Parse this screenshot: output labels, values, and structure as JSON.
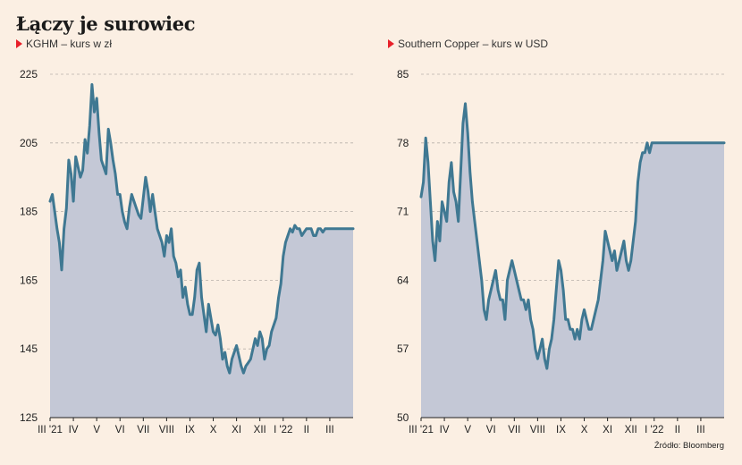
{
  "title": "Łączy je surowiec",
  "source": "Źródło: Bloomberg",
  "colors": {
    "line": "#3f7892",
    "area": "#c4c8d6",
    "grid": "#b8b1aa",
    "marker": "#e8202a",
    "background": "#fbefe3"
  },
  "months": [
    "III '21",
    "IV",
    "V",
    "VI",
    "VII",
    "VIII",
    "IX",
    "X",
    "XI",
    "XII",
    "I '22",
    "II",
    "III"
  ],
  "chart_data": [
    {
      "type": "area",
      "subtitle": "KGHM – kurs w zł",
      "ylim": [
        125,
        225
      ],
      "yticks": [
        125,
        145,
        165,
        185,
        205,
        225
      ],
      "x": [
        0,
        0.1,
        0.2,
        0.3,
        0.4,
        0.5,
        0.6,
        0.7,
        0.8,
        0.9,
        1.0,
        1.1,
        1.2,
        1.3,
        1.4,
        1.5,
        1.6,
        1.7,
        1.8,
        1.9,
        2.0,
        2.1,
        2.2,
        2.3,
        2.4,
        2.5,
        2.6,
        2.7,
        2.8,
        2.9,
        3.0,
        3.1,
        3.2,
        3.3,
        3.4,
        3.5,
        3.6,
        3.7,
        3.8,
        3.9,
        4.0,
        4.1,
        4.2,
        4.3,
        4.4,
        4.5,
        4.6,
        4.7,
        4.8,
        4.9,
        5.0,
        5.1,
        5.2,
        5.3,
        5.4,
        5.5,
        5.6,
        5.7,
        5.8,
        5.9,
        6.0,
        6.1,
        6.2,
        6.3,
        6.4,
        6.5,
        6.6,
        6.7,
        6.8,
        6.9,
        7.0,
        7.1,
        7.2,
        7.3,
        7.4,
        7.5,
        7.6,
        7.7,
        7.8,
        7.9,
        8.0,
        8.1,
        8.2,
        8.3,
        8.4,
        8.5,
        8.6,
        8.7,
        8.8,
        8.9,
        9.0,
        9.1,
        9.2,
        9.3,
        9.4,
        9.5,
        9.6,
        9.7,
        9.8,
        9.9,
        10.0,
        10.1,
        10.2,
        10.3,
        10.4,
        10.5,
        10.6,
        10.7,
        10.8,
        10.9,
        11.0,
        11.1,
        11.2,
        11.3,
        11.4,
        11.5,
        11.6,
        11.7,
        11.8,
        11.9,
        12.0,
        12.1,
        12.2,
        12.3,
        12.4,
        12.5,
        12.6,
        12.7,
        12.8,
        12.9,
        13.0
      ],
      "values": [
        188,
        190,
        185,
        180,
        176,
        168,
        180,
        186,
        200,
        196,
        188,
        201,
        198,
        195,
        197,
        206,
        202,
        210,
        222,
        214,
        218,
        208,
        200,
        198,
        196,
        209,
        205,
        200,
        196,
        190,
        190,
        185,
        182,
        180,
        186,
        190,
        188,
        186,
        184,
        183,
        189,
        195,
        191,
        185,
        190,
        185,
        180,
        178,
        176,
        172,
        178,
        176,
        180,
        172,
        170,
        166,
        168,
        160,
        163,
        158,
        155,
        155,
        160,
        168,
        170,
        160,
        155,
        150,
        158,
        154,
        150,
        149,
        152,
        148,
        142,
        144,
        140,
        138,
        142,
        144,
        146,
        143,
        140,
        138,
        140,
        141,
        142,
        145,
        148,
        146,
        150,
        148,
        142,
        145,
        146,
        150,
        152,
        154,
        160,
        164,
        172,
        176,
        178,
        180,
        179,
        181,
        180,
        180,
        178,
        179,
        180,
        180,
        180,
        178,
        178,
        180,
        180,
        179,
        180,
        180,
        180,
        180,
        180,
        180,
        180,
        180,
        180,
        180,
        180,
        180,
        180
      ]
    },
    {
      "type": "area",
      "subtitle": "Southern Copper – kurs w USD",
      "ylim": [
        50,
        85
      ],
      "yticks": [
        50,
        57,
        64,
        71,
        78,
        85
      ],
      "x": [
        0,
        0.1,
        0.2,
        0.3,
        0.4,
        0.5,
        0.6,
        0.7,
        0.8,
        0.9,
        1.0,
        1.1,
        1.2,
        1.3,
        1.4,
        1.5,
        1.6,
        1.7,
        1.8,
        1.9,
        2.0,
        2.1,
        2.2,
        2.3,
        2.4,
        2.5,
        2.6,
        2.7,
        2.8,
        2.9,
        3.0,
        3.1,
        3.2,
        3.3,
        3.4,
        3.5,
        3.6,
        3.7,
        3.8,
        3.9,
        4.0,
        4.1,
        4.2,
        4.3,
        4.4,
        4.5,
        4.6,
        4.7,
        4.8,
        4.9,
        5.0,
        5.1,
        5.2,
        5.3,
        5.4,
        5.5,
        5.6,
        5.7,
        5.8,
        5.9,
        6.0,
        6.1,
        6.2,
        6.3,
        6.4,
        6.5,
        6.6,
        6.7,
        6.8,
        6.9,
        7.0,
        7.1,
        7.2,
        7.3,
        7.4,
        7.5,
        7.6,
        7.7,
        7.8,
        7.9,
        8.0,
        8.1,
        8.2,
        8.3,
        8.4,
        8.5,
        8.6,
        8.7,
        8.8,
        8.9,
        9.0,
        9.1,
        9.2,
        9.3,
        9.4,
        9.5,
        9.6,
        9.7,
        9.8,
        9.9,
        10.0,
        10.1,
        10.2,
        10.3,
        10.4,
        10.5,
        10.6,
        10.7,
        10.8,
        10.9,
        11.0,
        11.1,
        11.2,
        11.3,
        11.4,
        11.5,
        11.6,
        11.7,
        11.8,
        11.9,
        12.0,
        12.1,
        12.2,
        12.3,
        12.4,
        12.5,
        12.6,
        12.7,
        12.8,
        12.9,
        13.0
      ],
      "values": [
        72.5,
        74,
        78.5,
        76,
        72,
        68,
        66,
        70,
        68,
        72,
        71,
        70,
        74,
        76,
        73,
        72,
        70,
        75,
        80,
        82,
        79,
        75,
        72,
        70,
        68,
        66,
        64,
        61,
        60,
        62,
        63,
        64,
        65,
        63,
        62,
        62,
        60,
        64,
        65,
        66,
        65,
        64,
        63,
        62,
        62,
        61,
        62,
        60,
        59,
        57,
        56,
        57,
        58,
        56,
        55,
        57,
        58,
        60,
        63,
        66,
        65,
        63,
        60,
        60,
        59,
        59,
        58,
        59,
        58,
        60,
        61,
        60,
        59,
        59,
        60,
        61,
        62,
        64,
        66,
        69,
        68,
        67,
        66,
        67,
        65,
        66,
        67,
        68,
        66,
        65,
        66,
        68,
        70,
        74,
        76,
        77,
        77,
        78,
        77,
        78,
        78,
        78,
        78,
        78,
        78,
        78,
        78,
        78,
        78,
        78,
        78,
        78,
        78,
        78,
        78,
        78,
        78,
        78,
        78,
        78,
        78,
        78,
        78,
        78,
        78,
        78,
        78,
        78,
        78,
        78,
        78
      ]
    }
  ]
}
